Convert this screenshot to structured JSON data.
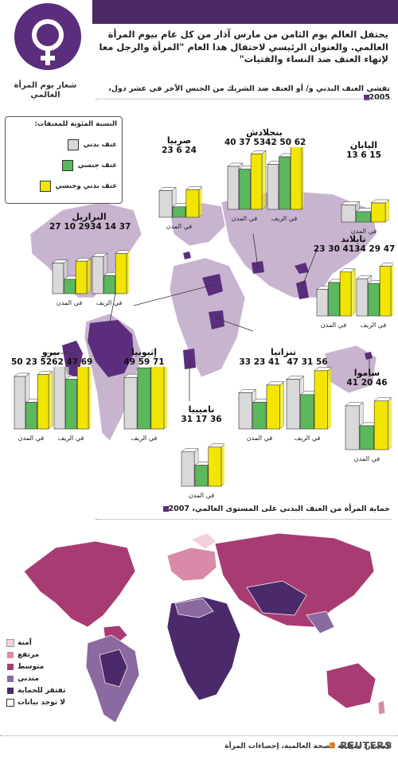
{
  "header": {
    "logo_label": "شعار يوم المرأة العالمي",
    "intro_text": "يحتفل العالم يوم الثامن من مارس آذار من كل عام بيوم المرأة العالمي. والعنوان الرئيسي لاحتفال هذا العام \"المرأة والرجل معا لإنهاء العنف ضد النساء والفتيات\""
  },
  "section1": {
    "heading": "تفشي العنف البدني و/ أو العنف ضد الشريك من الجنس الآخر في عشر دول، 2005"
  },
  "legend": {
    "title": "النسبة المئوية للمعنفات:",
    "items": [
      {
        "label": "عنف بدني",
        "color": "#d9d9d9"
      },
      {
        "label": "عنف جنسي",
        "color": "#5cb85c"
      },
      {
        "label": "عنف بدني وجنسي",
        "color": "#f2e600"
      }
    ]
  },
  "setting_labels": {
    "city": "في المدن",
    "rural": "في الريف"
  },
  "countries": [
    {
      "name": "اليابان",
      "groups": [
        {
          "setting": "city",
          "values": [
            13,
            6,
            15
          ]
        }
      ]
    },
    {
      "name": "بنجلادش",
      "groups": [
        {
          "setting": "city",
          "values": [
            40,
            37,
            53
          ]
        },
        {
          "setting": "rural",
          "values": [
            42,
            50,
            62
          ]
        }
      ]
    },
    {
      "name": "صربيا",
      "groups": [
        {
          "setting": "city",
          "values": [
            23,
            6,
            24
          ]
        }
      ]
    },
    {
      "name": "البرازيل",
      "groups": [
        {
          "setting": "city",
          "values": [
            27,
            10,
            29
          ]
        },
        {
          "setting": "rural",
          "values": [
            34,
            14,
            37
          ]
        }
      ]
    },
    {
      "name": "تايلاند",
      "groups": [
        {
          "setting": "city",
          "values": [
            23,
            30,
            41
          ]
        },
        {
          "setting": "rural",
          "values": [
            34,
            29,
            47
          ]
        }
      ]
    },
    {
      "name": "بيرو",
      "groups": [
        {
          "setting": "city",
          "values": [
            50,
            23,
            52
          ]
        },
        {
          "setting": "rural",
          "values": [
            62,
            47,
            69
          ]
        }
      ]
    },
    {
      "name": "إثيوبيا",
      "groups": [
        {
          "setting": "rural",
          "values": [
            49,
            59,
            71
          ]
        }
      ]
    },
    {
      "name": "تنزانيا",
      "groups": [
        {
          "setting": "city",
          "values": [
            33,
            23,
            41
          ]
        },
        {
          "setting": "rural",
          "values": [
            47,
            31,
            56
          ]
        }
      ]
    },
    {
      "name": "ساموا",
      "groups": [
        {
          "setting": "city",
          "values": [
            41,
            20,
            46
          ]
        }
      ]
    },
    {
      "name": "ناميبيا",
      "groups": [
        {
          "setting": "city",
          "values": [
            31,
            17,
            36
          ]
        }
      ]
    }
  ],
  "section2": {
    "heading": "حماية المرأة من العنف البدني على المستوى العالمي، 2007"
  },
  "protection_legend": [
    {
      "label": "آمنة",
      "color": "#f3d0dc"
    },
    {
      "label": "مرتفع",
      "color": "#d98aa8"
    },
    {
      "label": "متوسط",
      "color": "#a83c72"
    },
    {
      "label": "متدني",
      "color": "#8a6aa0"
    },
    {
      "label": "تفتقر للحماية",
      "color": "#4a2a6a"
    },
    {
      "label": "لا توجد بيانات",
      "color": "#ffffff"
    }
  ],
  "footer": {
    "source": "المصدر: منظمة الصحة العالمية، إحصاءات المرأة",
    "brand": "REUTERS"
  },
  "colors": {
    "brand_purple": "#4b2a63",
    "map_land": "#c8b4cf",
    "highlight": "#5a2e7c"
  }
}
